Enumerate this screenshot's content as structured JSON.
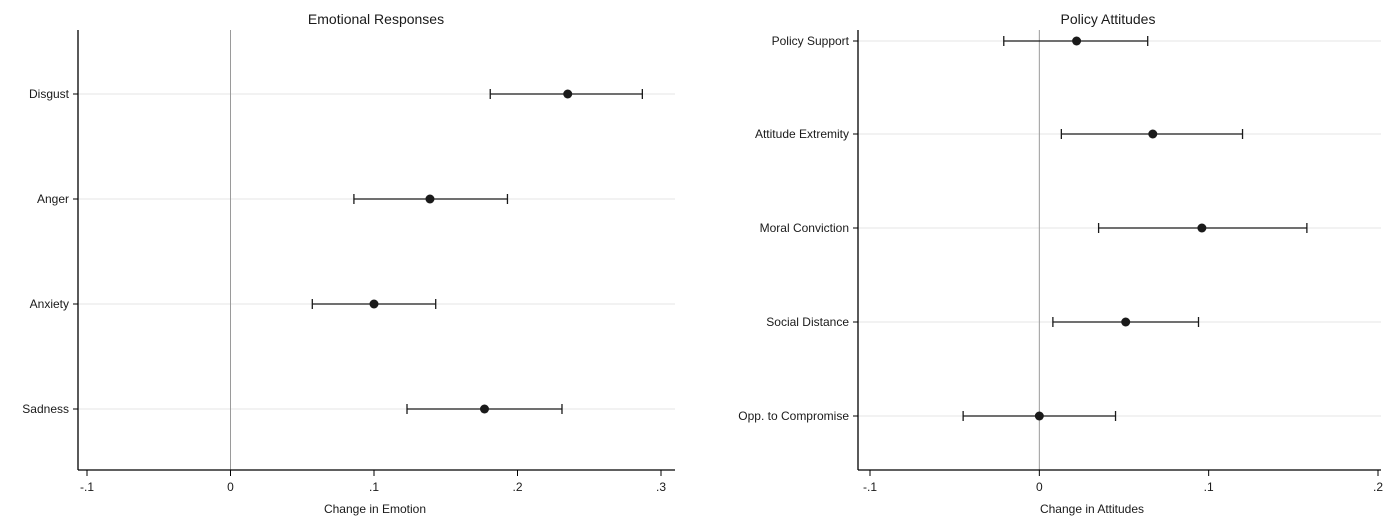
{
  "chart_data": [
    {
      "type": "scatter",
      "title": "Emotional Responses",
      "xlabel": "Change in Emotion",
      "ylabel": "",
      "xlim": [
        -0.1,
        0.3
      ],
      "xticks": [
        -0.1,
        0,
        0.1,
        0.2,
        0.3
      ],
      "xtick_labels": [
        "-.1",
        "0",
        ".1",
        ".2",
        ".3"
      ],
      "reference_line": 0,
      "grid": "horizontal",
      "categories": [
        "Disgust",
        "Anger",
        "Anxiety",
        "Sadness"
      ],
      "points": [
        {
          "label": "Disgust",
          "estimate": 0.235,
          "ci_low": 0.181,
          "ci_high": 0.287
        },
        {
          "label": "Anger",
          "estimate": 0.139,
          "ci_low": 0.086,
          "ci_high": 0.193
        },
        {
          "label": "Anxiety",
          "estimate": 0.1,
          "ci_low": 0.057,
          "ci_high": 0.143
        },
        {
          "label": "Sadness",
          "estimate": 0.177,
          "ci_low": 0.123,
          "ci_high": 0.231
        }
      ]
    },
    {
      "type": "scatter",
      "title": "Policy Attitudes",
      "xlabel": "Change in Attitudes",
      "ylabel": "",
      "xlim": [
        -0.1,
        0.2
      ],
      "xticks": [
        -0.1,
        0,
        0.1,
        0.2
      ],
      "xtick_labels": [
        "-.1",
        "0",
        ".1",
        ".2"
      ],
      "reference_line": 0,
      "grid": "horizontal",
      "categories": [
        "Policy Support",
        "Attitude Extremity",
        "Moral Conviction",
        "Social Distance",
        "Opp. to Compromise"
      ],
      "points": [
        {
          "label": "Policy Support",
          "estimate": 0.022,
          "ci_low": -0.021,
          "ci_high": 0.064
        },
        {
          "label": "Attitude Extremity",
          "estimate": 0.067,
          "ci_low": 0.013,
          "ci_high": 0.12
        },
        {
          "label": "Moral Conviction",
          "estimate": 0.096,
          "ci_low": 0.035,
          "ci_high": 0.158
        },
        {
          "label": "Social Distance",
          "estimate": 0.051,
          "ci_low": 0.008,
          "ci_high": 0.094
        },
        {
          "label": "Opp. to Compromise",
          "estimate": 0.0,
          "ci_low": -0.045,
          "ci_high": 0.045
        }
      ]
    }
  ]
}
